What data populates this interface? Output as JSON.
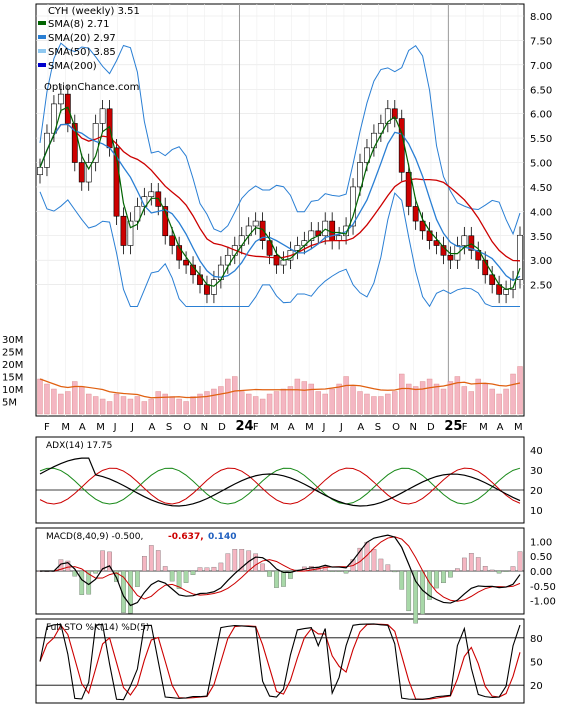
{
  "chart_data": {
    "type": "stock-technical",
    "title": "CYH (weekly) 3.51",
    "watermark": "OptionChance.com",
    "legend": [
      {
        "label": "CYH (weekly) 3.51",
        "color": "#000000"
      },
      {
        "label": "SMA(8) 2.71",
        "color": "#006400"
      },
      {
        "label": "SMA(20) 2.97",
        "color": "#2a7fd4"
      },
      {
        "label": "SMA(50) 3.85",
        "color": "#8fc8f0"
      },
      {
        "label": "SMA(200)",
        "color": "#0000cc"
      }
    ],
    "price_axis": {
      "ticks": [
        "8.00",
        "7.50",
        "7.00",
        "6.50",
        "6.00",
        "5.50",
        "5.00",
        "4.50",
        "4.00",
        "3.50",
        "3.00",
        "2.50"
      ],
      "ylim": [
        2.0,
        8.0
      ]
    },
    "volume_axis": {
      "ticks": [
        "30M",
        "25M",
        "20M",
        "15M",
        "10M",
        "5M"
      ],
      "ylim": [
        0,
        32
      ]
    },
    "x_labels": [
      "F",
      "M",
      "A",
      "M",
      "J",
      "J",
      "A",
      "S",
      "O",
      "N",
      "D",
      "24",
      "F",
      "M",
      "A",
      "M",
      "J",
      "J",
      "A",
      "S",
      "O",
      "N",
      "D",
      "25",
      "F",
      "M",
      "A",
      "M"
    ],
    "closes": [
      4.9,
      5.6,
      6.2,
      6.4,
      5.8,
      5.0,
      4.6,
      5.0,
      5.8,
      6.1,
      5.3,
      3.9,
      3.3,
      3.8,
      4.1,
      4.3,
      4.4,
      4.1,
      3.5,
      3.3,
      3.0,
      2.9,
      2.7,
      2.5,
      2.3,
      2.6,
      2.9,
      3.1,
      3.3,
      3.5,
      3.7,
      3.8,
      3.4,
      3.1,
      2.9,
      3.0,
      3.2,
      3.3,
      3.4,
      3.6,
      3.5,
      3.8,
      3.4,
      3.5,
      3.7,
      4.5,
      5.0,
      5.3,
      5.6,
      5.8,
      6.1,
      5.9,
      4.8,
      4.1,
      3.8,
      3.6,
      3.4,
      3.3,
      3.1,
      3.0,
      3.3,
      3.5,
      3.2,
      3.0,
      2.7,
      2.5,
      2.3,
      2.4,
      2.6,
      3.51
    ],
    "volume": [
      14,
      12,
      10,
      8,
      9,
      13,
      11,
      8,
      7,
      6,
      5,
      8,
      7,
      6,
      7,
      5,
      6,
      9,
      8,
      7,
      6,
      5,
      7,
      8,
      9,
      10,
      11,
      14,
      15,
      9,
      8,
      7,
      6,
      8,
      9,
      10,
      11,
      14,
      13,
      12,
      9,
      8,
      10,
      12,
      15,
      11,
      9,
      8,
      7,
      7,
      8,
      9,
      16,
      12,
      11,
      13,
      14,
      12,
      10,
      13,
      15,
      11,
      9,
      14,
      12,
      10,
      8,
      10,
      16,
      19
    ],
    "ad_hoc_note": "",
    "panels": [
      {
        "label": "ADX(14) 17.75",
        "ticks": [
          "40",
          "30",
          "20",
          "10"
        ]
      },
      {
        "label": "MACD(8,40,9) -0.500,",
        "value1": "-0.637,",
        "value2": "0.140",
        "ticks": [
          "1.00",
          "0.50",
          "0.00",
          "-0.50",
          "-1.00"
        ]
      },
      {
        "label": "Full STO %K(14) %D(5)",
        "ticks": [
          "80",
          "50",
          "20"
        ]
      }
    ],
    "colors": {
      "up": "#ffffff",
      "down": "#cc0000",
      "sma8": "#006400",
      "sma20": "#2a7fd4",
      "sma50": "#cc0000",
      "vol": "#f4b6c2",
      "vol_ma": "#e06010",
      "grid": "#b4b4b4"
    }
  }
}
